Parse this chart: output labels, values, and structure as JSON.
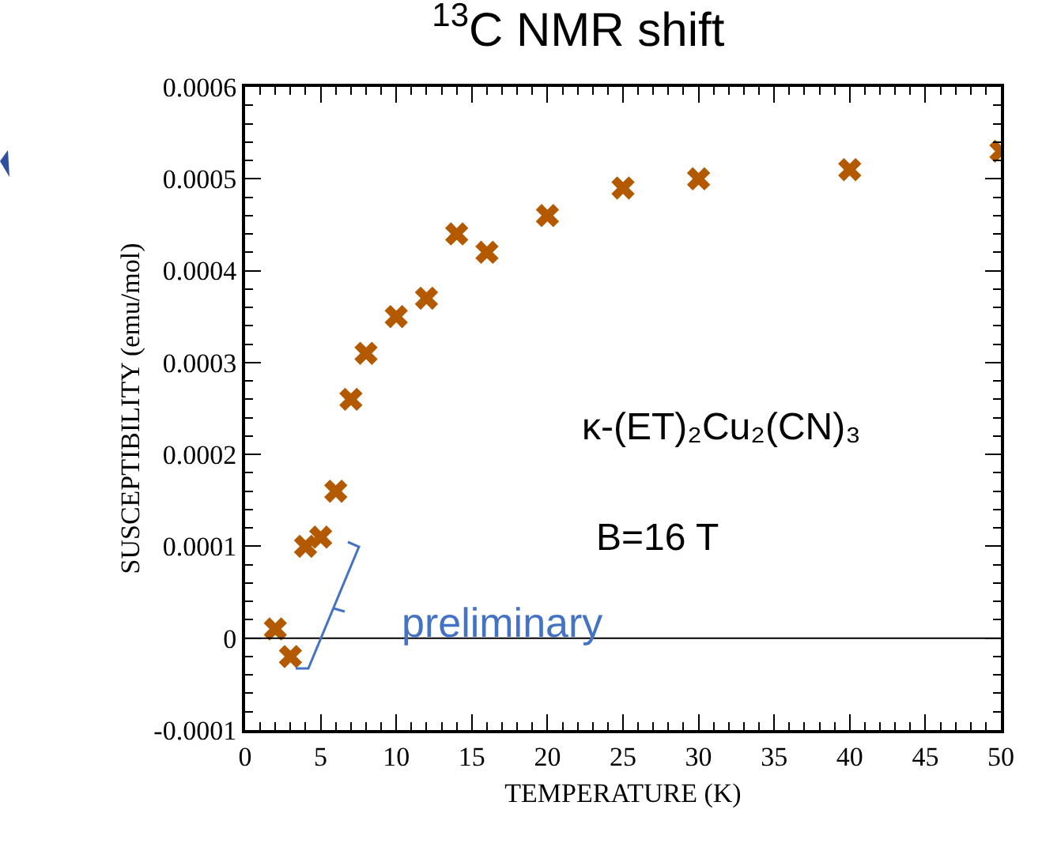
{
  "chart_data": {
    "type": "scatter",
    "title": "$^{13}$C NMR shift",
    "xlabel": "TEMPERATURE (K)",
    "ylabel": "SUSCEPTIBILITY (emu/mol)",
    "x": [
      2,
      3,
      4,
      5,
      6,
      7,
      8,
      10,
      12,
      14,
      16,
      20,
      25,
      30,
      40,
      50
    ],
    "series": [
      {
        "color": "#b35900",
        "values": [
          1e-05,
          -2e-05,
          0.0001,
          0.00011,
          0.00016,
          0.00026,
          0.00031,
          0.00035,
          0.00037,
          0.00044,
          0.00042,
          0.00046,
          0.00049,
          0.0005,
          0.00051,
          0.00053
        ]
      }
    ],
    "xlim": [
      0,
      50
    ],
    "xticks": [
      0,
      5,
      10,
      15,
      20,
      25,
      30,
      35,
      40,
      45,
      50
    ],
    "ylim": [
      -0.0001,
      0.0006
    ],
    "yticks": [
      -0.0001,
      0,
      0.0001,
      0.0002,
      0.0003,
      0.0004,
      0.0005,
      0.0006
    ],
    "ref_lines": [
      {
        "axis": "y",
        "value": 0,
        "color": "#000000"
      }
    ],
    "annotations": [
      "κ-(ET)₂Cu₂(CN)₃",
      "B=16 T",
      "preliminary"
    ],
    "marker": "cross",
    "grid": false
  }
}
